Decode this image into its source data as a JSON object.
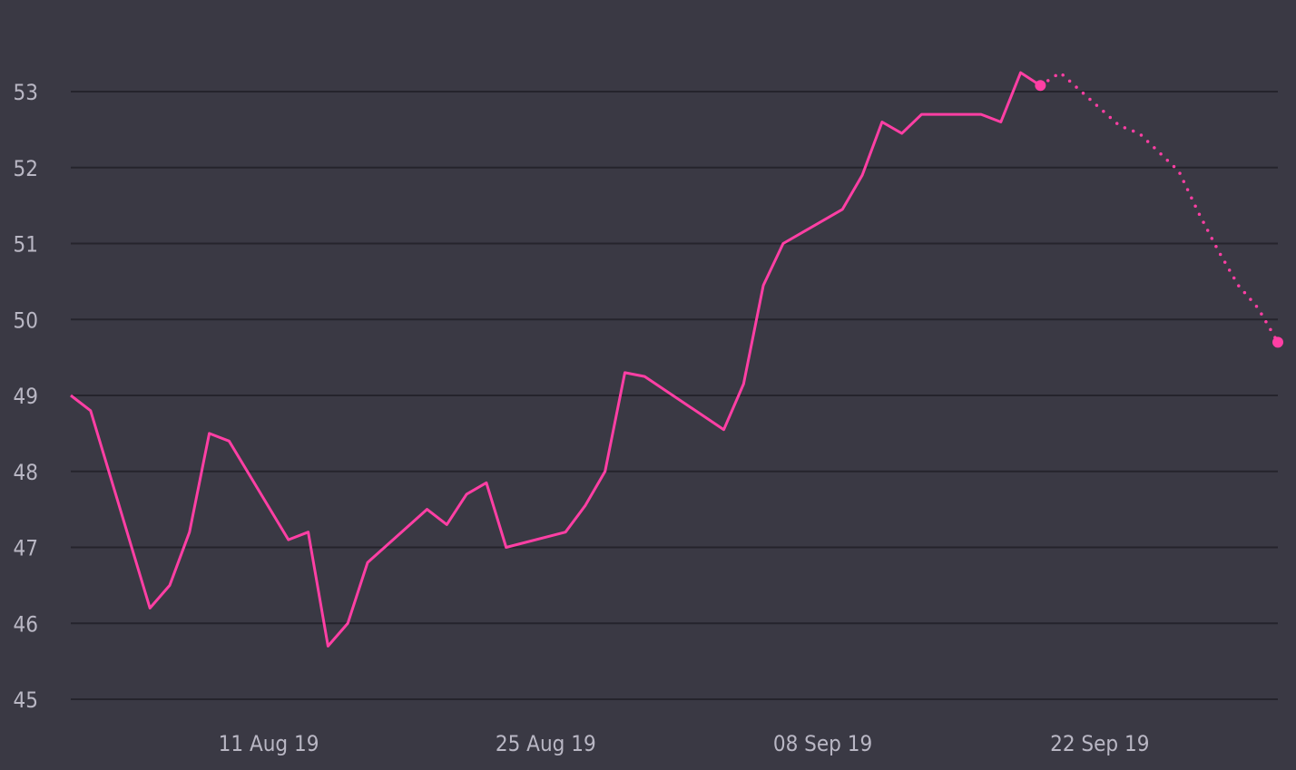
{
  "chart_data": {
    "type": "line",
    "title": "",
    "xlabel": "",
    "ylabel": "",
    "colors": {
      "background": "#3a3944",
      "grid": "#25242c",
      "line": "#ff3fa4",
      "tick_text": "#b9b7c4"
    },
    "grid": true,
    "legend": "none",
    "x_range": [
      "2019-08-01",
      "2019-10-01"
    ],
    "y_range": [
      45,
      53.8
    ],
    "y_ticks": [
      {
        "value": 45,
        "label": "45"
      },
      {
        "value": 46,
        "label": "46"
      },
      {
        "value": 47,
        "label": "47"
      },
      {
        "value": 48,
        "label": "48"
      },
      {
        "value": 49,
        "label": "49"
      },
      {
        "value": 50,
        "label": "50"
      },
      {
        "value": 51,
        "label": "51"
      },
      {
        "value": 52,
        "label": "52"
      },
      {
        "value": 53,
        "label": "53"
      }
    ],
    "x_ticks": [
      {
        "value": "2019-08-11",
        "label": "11 Aug 19"
      },
      {
        "value": "2019-08-25",
        "label": "25 Aug 19"
      },
      {
        "value": "2019-09-08",
        "label": "08 Sep 19"
      },
      {
        "value": "2019-09-22",
        "label": "22 Sep 19"
      }
    ],
    "series": [
      {
        "style": "solid",
        "values": [
          [
            "2019-08-01",
            49.0
          ],
          [
            "2019-08-02",
            48.8
          ],
          [
            "2019-08-05",
            46.2
          ],
          [
            "2019-08-06",
            46.5
          ],
          [
            "2019-08-07",
            47.2
          ],
          [
            "2019-08-08",
            48.5
          ],
          [
            "2019-08-09",
            48.4
          ],
          [
            "2019-08-12",
            47.1
          ],
          [
            "2019-08-13",
            47.2
          ],
          [
            "2019-08-14",
            45.7
          ],
          [
            "2019-08-15",
            46.0
          ],
          [
            "2019-08-16",
            46.8
          ],
          [
            "2019-08-19",
            47.5
          ],
          [
            "2019-08-20",
            47.3
          ],
          [
            "2019-08-21",
            47.7
          ],
          [
            "2019-08-22",
            47.85
          ],
          [
            "2019-08-23",
            47.0
          ],
          [
            "2019-08-26",
            47.2
          ],
          [
            "2019-08-27",
            47.55
          ],
          [
            "2019-08-28",
            48.0
          ],
          [
            "2019-08-29",
            49.3
          ],
          [
            "2019-08-30",
            49.25
          ],
          [
            "2019-09-03",
            48.55
          ],
          [
            "2019-09-04",
            49.15
          ],
          [
            "2019-09-05",
            50.45
          ],
          [
            "2019-09-06",
            51.0
          ],
          [
            "2019-09-09",
            51.45
          ],
          [
            "2019-09-10",
            51.9
          ],
          [
            "2019-09-11",
            52.6
          ],
          [
            "2019-09-12",
            52.45
          ],
          [
            "2019-09-13",
            52.7
          ],
          [
            "2019-09-16",
            52.7
          ],
          [
            "2019-09-17",
            52.6
          ],
          [
            "2019-09-18",
            53.25
          ],
          [
            "2019-09-19",
            53.08
          ]
        ]
      },
      {
        "style": "dotted",
        "values": [
          [
            "2019-09-19",
            53.08
          ],
          [
            "2019-09-20",
            53.25
          ],
          [
            "2019-09-23",
            52.55
          ],
          [
            "2019-09-24",
            52.45
          ],
          [
            "2019-09-25",
            52.2
          ],
          [
            "2019-09-26",
            51.95
          ],
          [
            "2019-09-27",
            51.4
          ],
          [
            "2019-09-28",
            50.9
          ],
          [
            "2019-09-29",
            50.45
          ],
          [
            "2019-09-30",
            50.15
          ],
          [
            "2019-10-01",
            49.7
          ]
        ]
      }
    ],
    "markers": [
      [
        "2019-09-19",
        53.08
      ],
      [
        "2019-10-01",
        49.7
      ]
    ]
  }
}
